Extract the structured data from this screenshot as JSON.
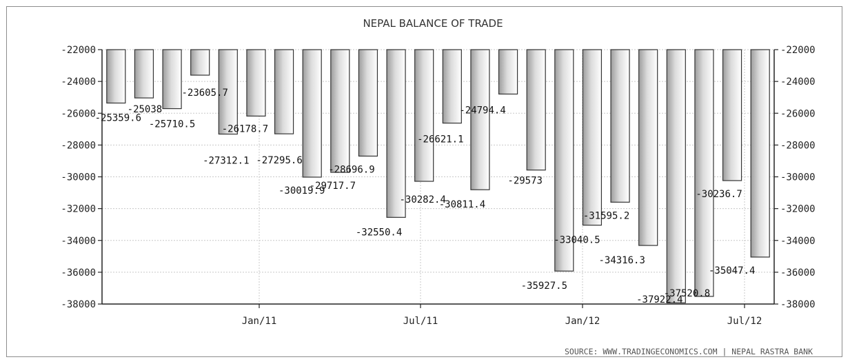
{
  "chart_data": {
    "type": "bar",
    "title": "NEPAL BALANCE OF TRADE",
    "source": "SOURCE: WWW.TRADINGECONOMICS.COM | NEPAL RASTRA BANK",
    "x_tick_labels": [
      "Jan/11",
      "Jul/11",
      "Jan/12",
      "Jul/12"
    ],
    "values": [
      -25359.6,
      -25038,
      -25710.5,
      -23605.7,
      -27312.1,
      -26178.7,
      -27295.6,
      -30019.9,
      -29717.7,
      -28696.9,
      -32550.4,
      -30282.4,
      -26621.1,
      -30811.4,
      -24794.4,
      -29573,
      -35927.5,
      -33040.5,
      -31595.2,
      -34316.3,
      -37922.4,
      -37520.8,
      -30236.7,
      -35047.4
    ],
    "value_labels": [
      "-25359.6",
      "-25038",
      "-25710.5",
      "-23605.7",
      "-27312.1",
      "-26178.7",
      "-27295.6",
      "-30019.9",
      "-29717.7",
      "-28696.9",
      "-32550.4",
      "-30282.4",
      "-26621.1",
      "-30811.4",
      "-24794.4",
      "-29573",
      "-35927.5",
      "-33040.5",
      "-31595.2",
      "-34316.3",
      "-37922.4",
      "-37520.8",
      "-30236.7",
      "-35047.4"
    ],
    "y_ticks": [
      -22000,
      -24000,
      -26000,
      -28000,
      -30000,
      -32000,
      -34000,
      -36000,
      -38000
    ],
    "y_tick_labels": [
      "-22000",
      "-24000",
      "-26000",
      "-28000",
      "-30000",
      "-32000",
      "-34000",
      "-36000",
      "-38000"
    ],
    "ylim": [
      -38000,
      -22000
    ],
    "y_axis_both_sides": true,
    "grid": true,
    "bar_baseline": -22000
  }
}
